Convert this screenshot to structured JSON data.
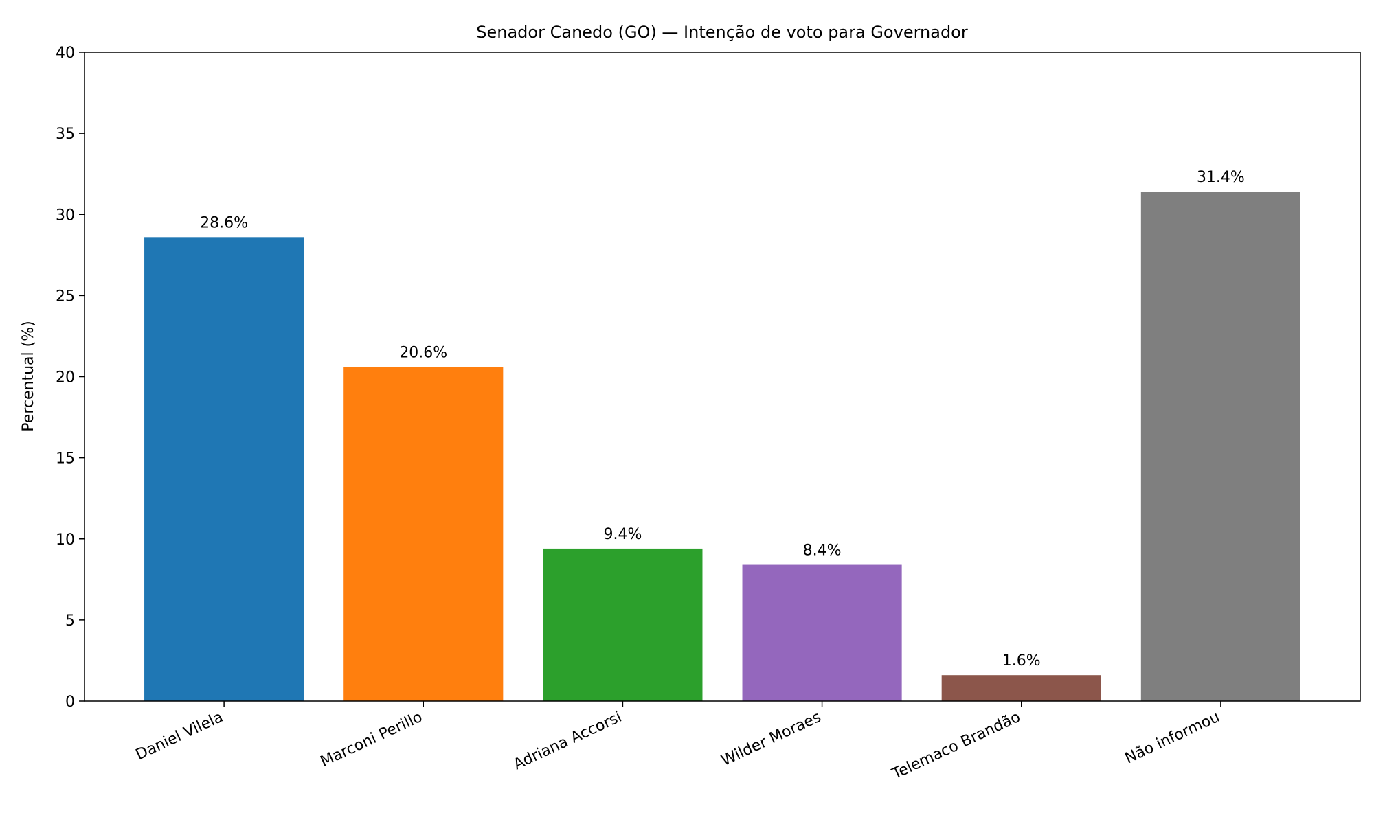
{
  "chart_data": {
    "type": "bar",
    "title": "Senador Canedo (GO) — Intenção de voto para Governador",
    "xlabel": "",
    "ylabel": "Percentual (%)",
    "ylim": [
      0,
      40
    ],
    "yticks": [
      0,
      5,
      10,
      15,
      20,
      25,
      30,
      35,
      40
    ],
    "grid": false,
    "categories": [
      "Daniel Vilela",
      "Marconi Perillo",
      "Adriana Accorsi",
      "Wilder Moraes",
      "Telemaco Brandão",
      "Não informou"
    ],
    "values": [
      28.6,
      20.6,
      9.4,
      8.4,
      1.6,
      31.4
    ],
    "data_labels": [
      "28.6%",
      "20.6%",
      "9.4%",
      "8.4%",
      "1.6%",
      "31.4%"
    ],
    "colors": [
      "#1f77b4",
      "#ff7f0e",
      "#2ca02c",
      "#9467bd",
      "#8c564b",
      "#7f7f7f"
    ]
  }
}
